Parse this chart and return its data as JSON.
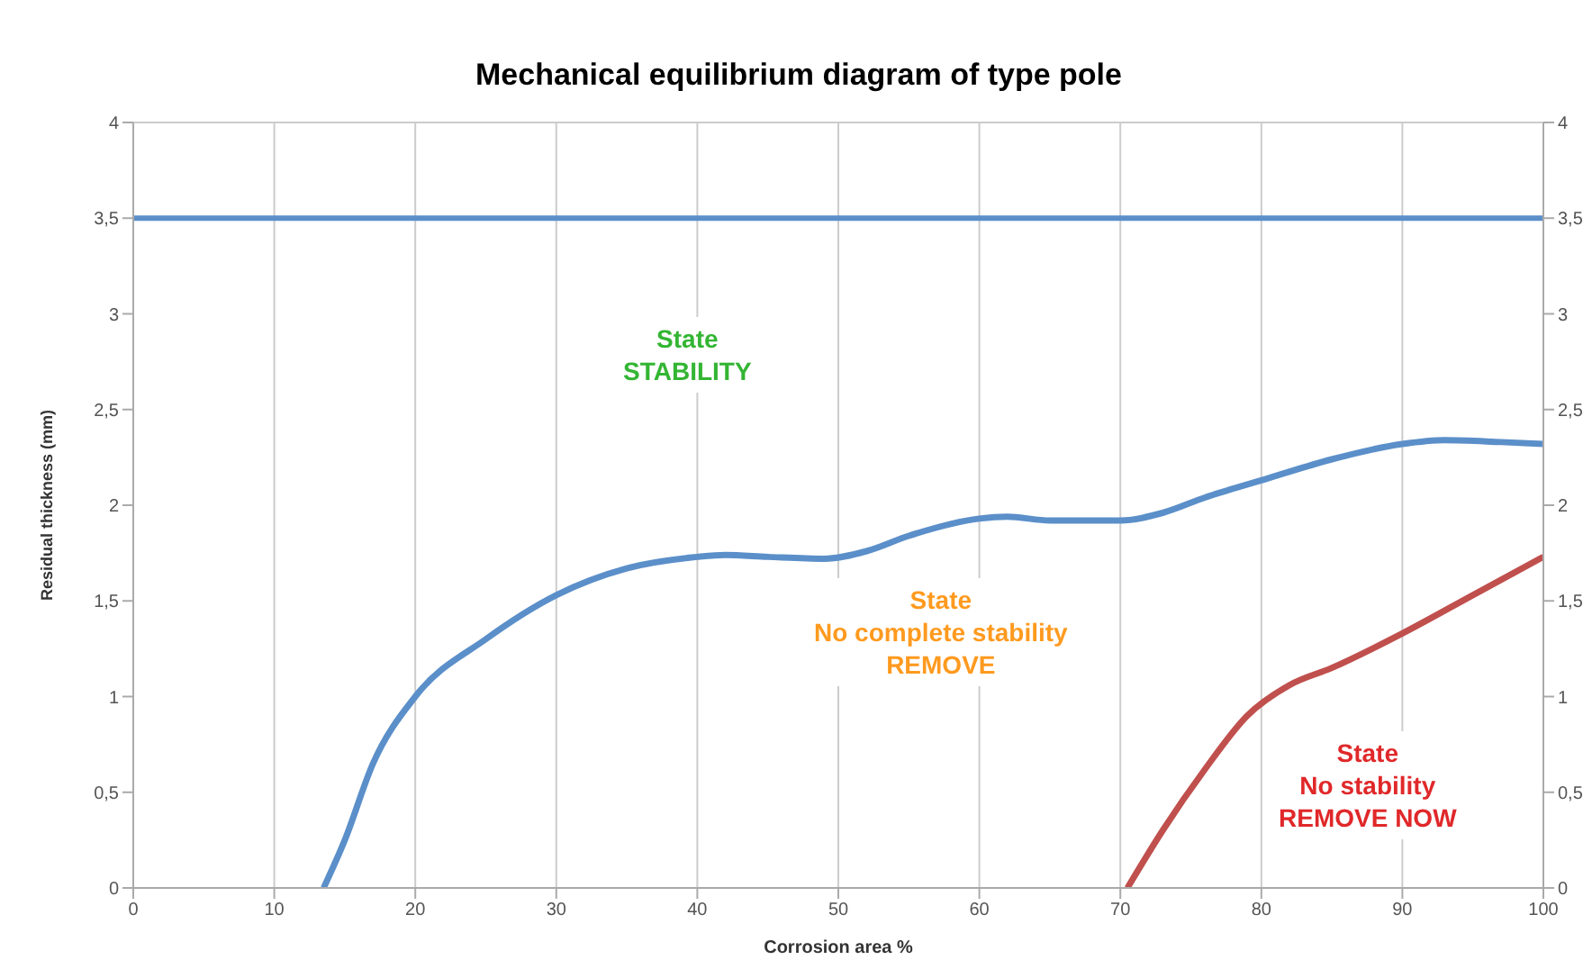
{
  "chart_data": {
    "type": "line",
    "title": "Mechanical equilibrium diagram of type pole",
    "xlabel": "Corrosion area %",
    "ylabel": "Residual thickness (mm)",
    "xlim": [
      0,
      100
    ],
    "xticks": [
      0,
      10,
      20,
      30,
      40,
      50,
      60,
      70,
      80,
      90,
      100
    ],
    "ylim": [
      0,
      4
    ],
    "yticks": [
      0,
      {
        "value": 0.5,
        "label": "0,5"
      },
      1,
      {
        "value": 1.5,
        "label": "1,5"
      },
      2,
      {
        "value": 2.5,
        "label": "2,5"
      },
      3,
      {
        "value": 3.5,
        "label": "3,5"
      },
      4
    ],
    "y2lim": [
      0,
      4
    ],
    "y2ticks": [
      0,
      {
        "value": 0.5,
        "label": "0,5"
      },
      1,
      {
        "value": 1.5,
        "label": "1,5"
      },
      2,
      {
        "value": 2.5,
        "label": "2,5"
      },
      3,
      {
        "value": 3.5,
        "label": "3,5"
      },
      4
    ],
    "grid": true,
    "legend": false,
    "marker": "none",
    "line_style": "solid",
    "ref_lines": [
      {
        "axis": "y",
        "value": 3.5,
        "color": "#5b8fc9"
      }
    ],
    "annotations": [
      "State\nSTABILITY",
      "State\nNo complete stability\nREMOVE",
      "State\nNo stability\nREMOVE NOW"
    ],
    "series": [
      {
        "color": "#5b8fc9",
        "x": [
          13.5,
          15,
          17,
          20,
          25,
          30,
          35,
          40,
          42,
          45,
          49,
          52,
          55,
          60,
          62,
          65,
          70,
          73,
          76,
          80,
          85,
          90,
          93,
          97,
          100
        ],
        "values": [
          0,
          0.25,
          0.65,
          1.0,
          1.3,
          1.53,
          1.67,
          1.73,
          1.74,
          1.73,
          1.72,
          1.76,
          1.84,
          1.93,
          1.94,
          1.92,
          1.92,
          1.96,
          2.04,
          2.13,
          2.24,
          2.32,
          2.34,
          2.33,
          2.32
        ]
      },
      {
        "color": "#c0504d",
        "x": [
          70.5,
          73,
          76,
          79,
          82,
          85,
          90,
          95,
          100
        ],
        "values": [
          0,
          0.3,
          0.62,
          0.9,
          1.06,
          1.15,
          1.33,
          1.53,
          1.73
        ]
      }
    ]
  }
}
